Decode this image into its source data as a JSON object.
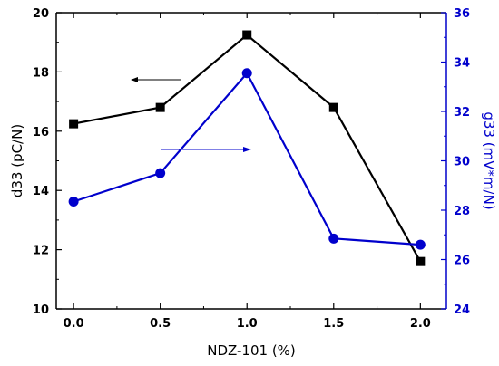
{
  "chart_data": {
    "type": "line",
    "x": [
      0.0,
      0.5,
      1.0,
      1.5,
      2.0
    ],
    "x_tick_labels": [
      "0.0",
      "0.5",
      "1.0",
      "1.5",
      "2.0"
    ],
    "xlim": [
      -0.1,
      2.15
    ],
    "xlabel": "NDZ-101 (%)",
    "ylabel_left": "d33 (pC/N)",
    "ylabel_right": "g33 (mV*m/N)",
    "ylim_left": [
      10,
      20
    ],
    "ylim_right": [
      24,
      36
    ],
    "y_left_ticks": [
      "10",
      "12",
      "14",
      "16",
      "18",
      "20"
    ],
    "y_right_ticks": [
      "24",
      "26",
      "28",
      "30",
      "32",
      "34",
      "36"
    ],
    "grid": false,
    "legend": "none",
    "series": [
      {
        "axis": "left",
        "marker": "square",
        "color": "#000000",
        "values": [
          16.25,
          16.8,
          19.25,
          16.8,
          11.6
        ]
      },
      {
        "axis": "right",
        "marker": "circle",
        "color": "#0000CC",
        "values": [
          28.35,
          29.5,
          33.55,
          26.85,
          26.6
        ]
      }
    ],
    "annotations": [
      {
        "type": "arrow",
        "direction": "left",
        "points_to": "left",
        "color": "#000000"
      },
      {
        "type": "arrow",
        "direction": "right",
        "points_to": "right",
        "color": "#0000CC"
      }
    ]
  }
}
